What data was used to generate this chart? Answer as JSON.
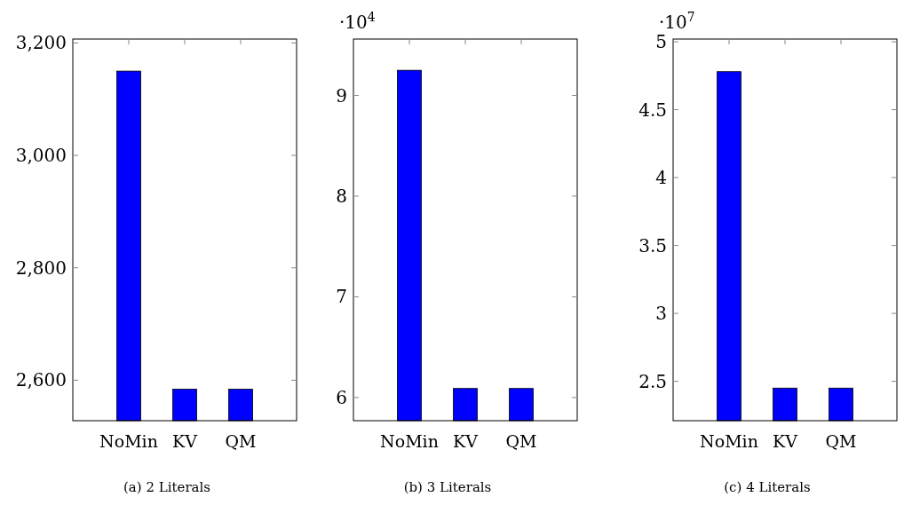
{
  "chart_data": [
    {
      "type": "bar",
      "title": "(a) 2 Literals",
      "categories": [
        "NoMin",
        "KV",
        "QM"
      ],
      "values": [
        3150,
        2584,
        2584
      ],
      "color": "#0000ff",
      "ylim": [
        2528,
        3207
      ],
      "yticks": [
        {
          "value": 2600,
          "label": "2,600"
        },
        {
          "value": 2800,
          "label": "2,800"
        },
        {
          "value": 3000,
          "label": "3,000"
        },
        {
          "value": 3200,
          "label": "3,200"
        }
      ],
      "grid": false
    },
    {
      "type": "bar",
      "title": "(b) 3 Literals",
      "categories": [
        "NoMin",
        "KV",
        "QM"
      ],
      "values": [
        9.25,
        6.09,
        6.09
      ],
      "color": "#0000ff",
      "ylim": [
        5.77,
        9.56
      ],
      "yticks": [
        6,
        7,
        8,
        9
      ],
      "annotations": [
        "·10$^{4}$"
      ],
      "grid": false
    },
    {
      "type": "bar",
      "title": "(c) 4 Literals",
      "categories": [
        "NoMin",
        "KV",
        "QM"
      ],
      "values": [
        4.78,
        2.45,
        2.45
      ],
      "color": "#0000ff",
      "ylim": [
        2.21,
        5.02
      ],
      "yticks": [
        2.5,
        3,
        3.5,
        4,
        4.5,
        5
      ],
      "annotations": [
        "·10$^{7}$"
      ],
      "grid": false
    }
  ]
}
